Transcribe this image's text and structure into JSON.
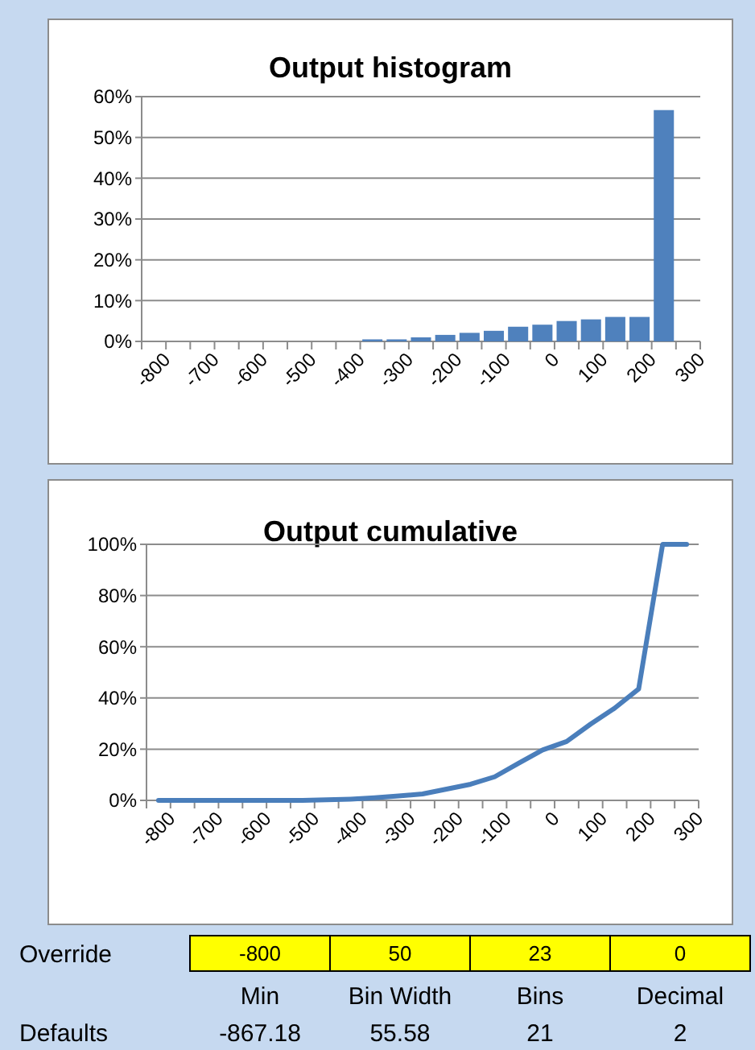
{
  "chart_data": [
    {
      "type": "bar",
      "title": "Output histogram",
      "categories": [
        "-800",
        null,
        "-700",
        null,
        "-600",
        null,
        "-500",
        null,
        "-400",
        null,
        "-300",
        null,
        "-200",
        null,
        "-100",
        null,
        "0",
        null,
        "100",
        null,
        "200",
        null,
        "300"
      ],
      "values": [
        0,
        0,
        0,
        0,
        0,
        0,
        0,
        0,
        0,
        0.5,
        0.5,
        1.0,
        1.6,
        2.1,
        2.6,
        3.6,
        4.1,
        5.0,
        5.4,
        6.0,
        6.0,
        56.7,
        0
      ],
      "color": "#4f81bd",
      "ylim": [
        0,
        60
      ],
      "yticks": [
        {
          "value": 0,
          "label": "0%"
        },
        {
          "value": 10,
          "label": "10%"
        },
        {
          "value": 20,
          "label": "20%"
        },
        {
          "value": 30,
          "label": "30%"
        },
        {
          "value": 40,
          "label": "40%"
        },
        {
          "value": 50,
          "label": "50%"
        },
        {
          "value": 60,
          "label": "60%"
        }
      ],
      "grid": "y"
    },
    {
      "type": "line",
      "title": "Output cumulative",
      "categories": [
        "-800",
        null,
        "-700",
        null,
        "-600",
        null,
        "-500",
        null,
        "-400",
        null,
        "-300",
        null,
        "-200",
        null,
        "-100",
        null,
        "0",
        null,
        "100",
        null,
        "200",
        null,
        "300"
      ],
      "values": [
        0,
        0,
        0,
        0,
        0,
        0,
        0,
        0.2,
        0.5,
        1.0,
        1.7,
        2.5,
        4.4,
        6.3,
        9.2,
        14.5,
        19.7,
        23.0,
        29.8,
        36.0,
        43.5,
        100,
        100
      ],
      "color": "#4a7ebb",
      "ylim": [
        0,
        100
      ],
      "yticks": [
        {
          "value": 0,
          "label": "0%"
        },
        {
          "value": 20,
          "label": "20%"
        },
        {
          "value": 40,
          "label": "40%"
        },
        {
          "value": 60,
          "label": "60%"
        },
        {
          "value": 80,
          "label": "80%"
        },
        {
          "value": 100,
          "label": "100%"
        }
      ],
      "grid": "y"
    },
    {
      "type": "other",
      "categories": [
        "Min",
        "Bin Width",
        "Bins",
        "Decimal"
      ],
      "series": [
        {
          "name": "Override",
          "color": "#ffff00",
          "values": [
            -800,
            50,
            23,
            0
          ]
        },
        {
          "name": "Defaults",
          "values": [
            -867.18,
            55.58,
            21,
            2
          ]
        }
      ],
      "data_labels": true
    }
  ]
}
